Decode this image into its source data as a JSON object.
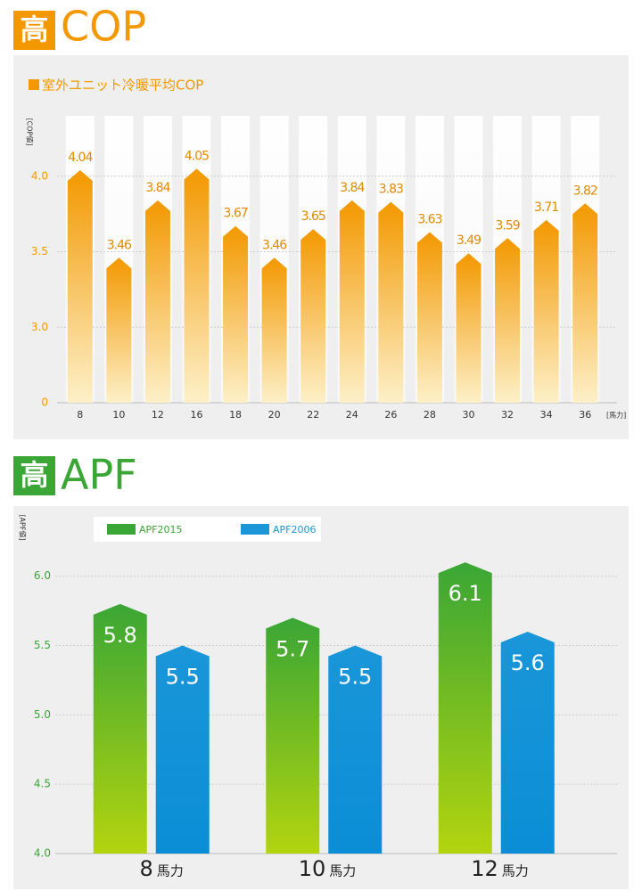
{
  "chart_data": [
    {
      "type": "bar",
      "badge": "高",
      "title": "COP",
      "legend_label": "室外ユニット冷暖平均COP",
      "y_label": "[COP値]",
      "x_unit": "[馬力]",
      "categories": [
        "8",
        "10",
        "12",
        "16",
        "18",
        "20",
        "22",
        "24",
        "26",
        "28",
        "30",
        "32",
        "34",
        "36"
      ],
      "values": [
        4.04,
        3.46,
        3.84,
        4.05,
        3.67,
        3.46,
        3.65,
        3.84,
        3.83,
        3.63,
        3.49,
        3.59,
        3.71,
        3.82
      ],
      "color": "#f39800",
      "ylim": [
        0,
        4.4
      ],
      "axis_break": true,
      "yticks": [
        0,
        {
          "value": 3,
          "label": "3.0"
        },
        3.5,
        {
          "value": 4,
          "label": "4.0"
        }
      ],
      "grid": true
    },
    {
      "type": "grouped_bar",
      "badge": "高",
      "title": "APF",
      "y_label": "[APF値]",
      "x_unit": "馬力",
      "categories": [
        "8",
        "10",
        "12"
      ],
      "series": [
        {
          "name": "APF2015",
          "color": "#3aa635",
          "values": [
            5.8,
            5.7,
            6.1
          ]
        },
        {
          "name": "APF2006",
          "color": "#1a96d9",
          "values": [
            5.5,
            5.5,
            5.6
          ]
        }
      ],
      "ylim": [
        4.0,
        6.3
      ],
      "yticks": [
        {
          "value": 4,
          "label": "4.0"
        },
        4.5,
        {
          "value": 5,
          "label": "5.0"
        },
        5.5,
        {
          "value": 6,
          "label": "6.0"
        }
      ],
      "grid": true
    }
  ]
}
